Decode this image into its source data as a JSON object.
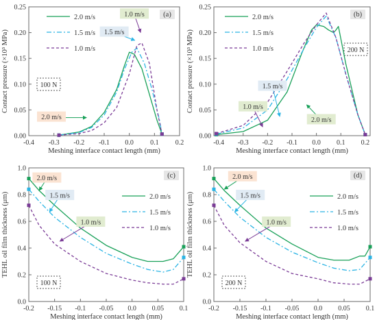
{
  "colors": {
    "s20": "#18a058",
    "s15": "#2ab4e4",
    "s10": "#7a3b96",
    "axis": "#6a6a6a",
    "text": "#333333"
  },
  "chart_data": [
    {
      "type": "line",
      "panel_label": "(a)",
      "load_label": "100 N",
      "xlabel": "Meshing interface contact length (mm)",
      "ylabel": "Contact pressure (×10³ MPa)",
      "xlim": [
        -0.4,
        0.2
      ],
      "ylim": [
        0,
        0.25
      ],
      "xticks": [
        "-0.4",
        "-0.3",
        "-0.2",
        "-0.1",
        "0.0",
        "0.1",
        "0.2"
      ],
      "yticks": [
        "0.00",
        "0.05",
        "0.10",
        "0.15",
        "0.20",
        "0.25"
      ],
      "legend_position": "top-left",
      "series": [
        {
          "name": "2.0 m/s",
          "x": [
            -0.28,
            -0.2,
            -0.15,
            -0.1,
            -0.05,
            -0.02,
            0.0,
            0.02,
            0.05,
            0.08,
            0.11,
            0.13
          ],
          "y": [
            0.001,
            0.007,
            0.018,
            0.045,
            0.09,
            0.135,
            0.162,
            0.158,
            0.13,
            0.08,
            0.03,
            0.003
          ]
        },
        {
          "name": "1.5 m/s",
          "x": [
            -0.28,
            -0.2,
            -0.15,
            -0.1,
            -0.05,
            -0.02,
            0.01,
            0.03,
            0.06,
            0.09,
            0.12,
            0.13
          ],
          "y": [
            0.001,
            0.006,
            0.016,
            0.04,
            0.085,
            0.128,
            0.162,
            0.17,
            0.14,
            0.09,
            0.03,
            0.003
          ]
        },
        {
          "name": "1.0 m/s",
          "x": [
            -0.28,
            -0.2,
            -0.15,
            -0.1,
            -0.05,
            0.0,
            0.03,
            0.05,
            0.08,
            0.11,
            0.13
          ],
          "y": [
            0.001,
            0.004,
            0.01,
            0.025,
            0.055,
            0.12,
            0.175,
            0.18,
            0.14,
            0.05,
            0.003
          ]
        }
      ],
      "callouts": [
        {
          "text": "2.0 m/s",
          "tx": -0.31,
          "ty": 0.035,
          "px": -0.17,
          "py": 0.035,
          "color": "s20",
          "bg": "#fbe3d2"
        },
        {
          "text": "1.5 m/s",
          "tx": -0.06,
          "ty": 0.2,
          "px": 0.022,
          "py": 0.185,
          "color": "s15",
          "bg": "#e1ebf4"
        },
        {
          "text": "1.0 m/s",
          "tx": 0.02,
          "ty": 0.235,
          "px": 0.045,
          "py": 0.2,
          "color": "s10",
          "bg": "#e1ecd0"
        }
      ]
    },
    {
      "type": "line",
      "panel_label": "(b)",
      "load_label": "200 N",
      "xlabel": "Meshing interface contact length (mm)",
      "ylabel": "Contact pressure (×10³ MPa)",
      "xlim": [
        -0.42,
        0.22
      ],
      "ylim": [
        0,
        0.25
      ],
      "xticks": [
        "-0.4",
        "-0.3",
        "-0.2",
        "-0.1",
        "0.0",
        "0.1",
        "0.2"
      ],
      "yticks": [
        "0.00",
        "0.05",
        "0.10",
        "0.15",
        "0.20",
        "0.25"
      ],
      "legend_position": "top-right",
      "series": [
        {
          "name": "2.0 m/s",
          "x": [
            -0.41,
            -0.3,
            -0.2,
            -0.12,
            -0.06,
            -0.02,
            0.0,
            0.03,
            0.05,
            0.07,
            0.08,
            0.09,
            0.12,
            0.17,
            0.2
          ],
          "y": [
            0.002,
            0.008,
            0.03,
            0.085,
            0.16,
            0.205,
            0.215,
            0.212,
            0.205,
            0.2,
            0.205,
            0.212,
            0.14,
            0.04,
            0.002
          ]
        },
        {
          "name": "1.5 m/s",
          "x": [
            -0.41,
            -0.3,
            -0.2,
            -0.12,
            -0.05,
            0.0,
            0.04,
            0.08,
            0.12,
            0.17,
            0.2
          ],
          "y": [
            0.003,
            0.015,
            0.05,
            0.11,
            0.17,
            0.21,
            0.232,
            0.19,
            0.12,
            0.04,
            0.002
          ]
        },
        {
          "name": "1.0 m/s",
          "x": [
            -0.41,
            -0.3,
            -0.2,
            -0.12,
            -0.05,
            0.0,
            0.04,
            0.08,
            0.12,
            0.17,
            0.2
          ],
          "y": [
            0.004,
            0.02,
            0.065,
            0.125,
            0.18,
            0.215,
            0.238,
            0.19,
            0.12,
            0.04,
            0.002
          ]
        }
      ],
      "callouts": [
        {
          "text": "1.5 m/s",
          "tx": -0.18,
          "ty": 0.095,
          "px": -0.15,
          "py": 0.037,
          "color": "s15",
          "bg": "#e1ebf4"
        },
        {
          "text": "1.0 m/s",
          "tx": -0.26,
          "ty": 0.055,
          "px": -0.22,
          "py": 0.017,
          "color": "s10",
          "bg": "#e1ecd0"
        },
        {
          "text": "2.0 m/s",
          "tx": 0.02,
          "ty": 0.03,
          "px": -0.04,
          "py": 0.06,
          "color": "s20",
          "bg": "#e1ecd0"
        }
      ]
    },
    {
      "type": "line",
      "panel_label": "(c)",
      "load_label": "100 N",
      "xlabel": "Meshing interface contact length (mm)",
      "ylabel": "TEHL oil film thickness (μm)",
      "xlim": [
        -0.2,
        0.1
      ],
      "ylim": [
        0,
        1.0
      ],
      "xticks": [
        "-0.2",
        "-0.15",
        "-0.1",
        "-0.05",
        "0.0",
        "0.05",
        "0.1"
      ],
      "yticks": [
        "0.0",
        "0.2",
        "0.4",
        "0.6",
        "0.8",
        "1.0"
      ],
      "legend_position": "top-right",
      "series": [
        {
          "name": "2.0 m/s",
          "x": [
            -0.2,
            -0.18,
            -0.15,
            -0.1,
            -0.05,
            0.0,
            0.03,
            0.06,
            0.08,
            0.1
          ],
          "y": [
            0.92,
            0.83,
            0.72,
            0.55,
            0.42,
            0.33,
            0.3,
            0.3,
            0.32,
            0.41
          ]
        },
        {
          "name": "1.5 m/s",
          "x": [
            -0.2,
            -0.18,
            -0.15,
            -0.1,
            -0.05,
            0.0,
            0.03,
            0.06,
            0.08,
            0.1
          ],
          "y": [
            0.84,
            0.75,
            0.63,
            0.48,
            0.36,
            0.28,
            0.24,
            0.22,
            0.24,
            0.33
          ]
        },
        {
          "name": "1.0 m/s",
          "x": [
            -0.2,
            -0.18,
            -0.15,
            -0.1,
            -0.05,
            0.0,
            0.03,
            0.06,
            0.08,
            0.1
          ],
          "y": [
            0.72,
            0.57,
            0.43,
            0.3,
            0.21,
            0.16,
            0.14,
            0.13,
            0.13,
            0.17
          ]
        }
      ],
      "callouts": [
        {
          "text": "2.0 m/s",
          "tx": -0.165,
          "ty": 0.92,
          "px": -0.18,
          "py": 0.83,
          "color": "s20",
          "bg": "#fbe3d2"
        },
        {
          "text": "1.5 m/s",
          "tx": -0.14,
          "ty": 0.79,
          "px": -0.16,
          "py": 0.67,
          "color": "s15",
          "bg": "#e1ebf4"
        },
        {
          "text": "1.0 m/s",
          "tx": -0.08,
          "ty": 0.59,
          "px": -0.14,
          "py": 0.45,
          "color": "s10",
          "bg": "#e1ecd0"
        }
      ]
    },
    {
      "type": "line",
      "panel_label": "(d)",
      "load_label": "200 N",
      "xlabel": "Meshing interface contact length (mm)",
      "ylabel": "TEHL oil film thickness (μm)",
      "xlim": [
        -0.2,
        0.1
      ],
      "ylim": [
        0,
        1.0
      ],
      "xticks": [
        "-0.2",
        "-0.15",
        "-0.1",
        "-0.05",
        "0.0",
        "0.05",
        "0.1"
      ],
      "yticks": [
        "0.0",
        "0.2",
        "0.4",
        "0.6",
        "0.8",
        "1.0"
      ],
      "legend_position": "top-right",
      "series": [
        {
          "name": "2.0 m/s",
          "x": [
            -0.2,
            -0.18,
            -0.15,
            -0.1,
            -0.05,
            0.0,
            0.03,
            0.06,
            0.08,
            0.09,
            0.1
          ],
          "y": [
            0.92,
            0.83,
            0.72,
            0.55,
            0.43,
            0.33,
            0.31,
            0.31,
            0.34,
            0.34,
            0.41
          ]
        },
        {
          "name": "1.5 m/s",
          "x": [
            -0.2,
            -0.18,
            -0.15,
            -0.1,
            -0.05,
            0.0,
            0.03,
            0.06,
            0.08,
            0.1
          ],
          "y": [
            0.84,
            0.75,
            0.63,
            0.48,
            0.37,
            0.29,
            0.25,
            0.23,
            0.24,
            0.33
          ]
        },
        {
          "name": "1.0 m/s",
          "x": [
            -0.2,
            -0.18,
            -0.15,
            -0.1,
            -0.05,
            0.0,
            0.03,
            0.06,
            0.08,
            0.1
          ],
          "y": [
            0.72,
            0.57,
            0.44,
            0.3,
            0.21,
            0.17,
            0.14,
            0.13,
            0.13,
            0.17
          ]
        }
      ],
      "callouts": [
        {
          "text": "2.0 m/s",
          "tx": -0.145,
          "ty": 0.93,
          "px": -0.18,
          "py": 0.84,
          "color": "s20",
          "bg": "#fbe3d2"
        },
        {
          "text": "1.5 m/s",
          "tx": -0.13,
          "ty": 0.79,
          "px": -0.16,
          "py": 0.67,
          "color": "s15",
          "bg": "#e1ebf4"
        },
        {
          "text": "1.0 m/s",
          "tx": -0.08,
          "ty": 0.59,
          "px": -0.14,
          "py": 0.45,
          "color": "s10",
          "bg": "#e1ecd0"
        }
      ]
    }
  ]
}
